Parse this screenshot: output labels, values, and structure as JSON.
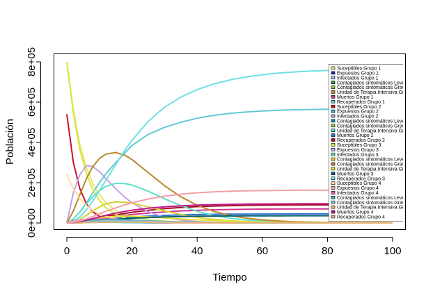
{
  "chart_data": {
    "type": "line",
    "xlabel": "Tiempo",
    "ylabel": "Población",
    "xlim": [
      0,
      100
    ],
    "ylim": [
      0,
      800000
    ],
    "x_ticks": [
      0,
      20,
      40,
      60,
      80,
      100
    ],
    "x_tick_labels": [
      "0",
      "20",
      "40",
      "60",
      "80",
      "100"
    ],
    "y_ticks": [
      0,
      200000,
      400000,
      600000,
      800000
    ],
    "y_tick_labels": [
      "0e+00",
      "2e+05",
      "4e+05",
      "6e+05",
      "8e+05"
    ],
    "legend_position": "top-right",
    "x": [
      0,
      2,
      4,
      6,
      8,
      10,
      12,
      15,
      18,
      20,
      25,
      30,
      35,
      40,
      45,
      50,
      55,
      60,
      65,
      70,
      75,
      80,
      85,
      90,
      95,
      100
    ],
    "series": [
      {
        "name": "Suceptibles Grupo 1",
        "color": "#e7e775",
        "values": [
          800000,
          560000,
          390000,
          275000,
          195000,
          140000,
          100000,
          62000,
          40000,
          30000,
          16000,
          9000,
          5000,
          3000,
          2000,
          1200,
          800,
          500,
          300,
          200,
          100,
          100,
          0,
          0,
          0,
          0
        ]
      },
      {
        "name": "Expuestos Grupo 1",
        "color": "#1f2bb8",
        "values": [
          0,
          12000,
          15000,
          14000,
          12000,
          10000,
          8000,
          6000,
          4500,
          3600,
          2000,
          1100,
          600,
          350,
          200,
          120,
          70,
          40,
          20,
          10,
          5,
          0,
          0,
          0,
          0,
          0
        ]
      },
      {
        "name": "Infectados Grupo 1",
        "color": "#8cc3f0",
        "values": [
          0,
          8000,
          14000,
          17000,
          17000,
          16000,
          14000,
          11000,
          8500,
          7000,
          4500,
          2800,
          1700,
          1000,
          600,
          380,
          230,
          140,
          90,
          50,
          30,
          20,
          10,
          0,
          0,
          0
        ]
      },
      {
        "name": "Contagiados sintomáticos Leves Grupo 1",
        "color": "#2e8b57",
        "values": [
          0,
          5000,
          11000,
          15000,
          17000,
          17500,
          16500,
          14000,
          11500,
          10000,
          7000,
          4800,
          3200,
          2100,
          1400,
          900,
          600,
          400,
          260,
          170,
          110,
          70,
          50,
          30,
          20,
          10
        ]
      },
      {
        "name": "Contagiados sintomáticos Graves Grupo 1",
        "color": "#8fbc3f",
        "values": [
          0,
          2000,
          5000,
          7500,
          9000,
          9800,
          10000,
          9500,
          8500,
          7700,
          5800,
          4200,
          3000,
          2100,
          1500,
          1000,
          700,
          480,
          330,
          230,
          160,
          110,
          80,
          50,
          30,
          20
        ]
      },
      {
        "name": "Unidad de Terapia Intensiva Grupo 1",
        "color": "#c8843a",
        "values": [
          0,
          500,
          1500,
          2500,
          3300,
          3900,
          4200,
          4300,
          4100,
          3800,
          3000,
          2300,
          1700,
          1200,
          850,
          600,
          420,
          290,
          200,
          140,
          100,
          70,
          50,
          30,
          20,
          10
        ]
      },
      {
        "name": "Muertos Grupo 1",
        "color": "#d0368f",
        "values": [
          0,
          1500,
          5000,
          10000,
          15000,
          20000,
          25000,
          32000,
          38000,
          42000,
          49000,
          55000,
          60000,
          63000,
          65500,
          67000,
          68000,
          68800,
          69300,
          69600,
          69800,
          69900,
          70000,
          70000,
          70000,
          70000
        ]
      },
      {
        "name": "Recuperados Grupo 1",
        "color": "#63c8d8",
        "values": [
          0,
          20000,
          55000,
          100000,
          150000,
          200000,
          245000,
          300000,
          350000,
          385000,
          440000,
          475000,
          500000,
          520000,
          534000,
          544000,
          551000,
          556000,
          559500,
          562000,
          563500,
          564500,
          565000,
          565500,
          566000,
          566000
        ]
      },
      {
        "name": "Suceptibles Grupo 2",
        "color": "#c8142a",
        "values": [
          540000,
          300000,
          170000,
          95000,
          55000,
          33000,
          20000,
          10000,
          5000,
          3000,
          1000,
          500,
          200,
          100,
          50,
          0,
          0,
          0,
          0,
          0,
          0,
          0,
          0,
          0,
          0,
          0
        ]
      },
      {
        "name": "Expuestos Grupo 2",
        "color": "#46b4c8",
        "values": [
          0,
          9000,
          12000,
          11000,
          9000,
          7000,
          5200,
          3400,
          2200,
          1600,
          800,
          400,
          200,
          100,
          50,
          20,
          10,
          0,
          0,
          0,
          0,
          0,
          0,
          0,
          0,
          0
        ]
      },
      {
        "name": "Infectados Grupo 2",
        "color": "#a8a0e0",
        "values": [
          0,
          6000,
          11000,
          13000,
          13000,
          12000,
          10500,
          8000,
          6000,
          4800,
          2900,
          1700,
          1000,
          600,
          350,
          200,
          120,
          70,
          40,
          20,
          10,
          0,
          0,
          0,
          0,
          0
        ]
      },
      {
        "name": "Contagiados sintomáticos Leves Grupo 2",
        "color": "#0f8fa0",
        "values": [
          0,
          4000,
          9000,
          12000,
          13000,
          13000,
          12000,
          10000,
          8000,
          6800,
          4500,
          3000,
          1900,
          1200,
          800,
          500,
          320,
          200,
          130,
          80,
          50,
          30,
          20,
          10,
          0,
          0
        ]
      },
      {
        "name": "Contagiados sintomáticos Graves Grupo 2",
        "color": "#9acd32",
        "values": [
          0,
          1500,
          4000,
          6000,
          7000,
          7500,
          7500,
          7000,
          6200,
          5500,
          4000,
          2800,
          1900,
          1300,
          900,
          600,
          400,
          270,
          180,
          120,
          80,
          50,
          30,
          20,
          10,
          0
        ]
      },
      {
        "name": "Unidad de Terapia Intensiva Grupo 2",
        "color": "#40d8d0",
        "values": [
          0,
          400,
          1200,
          2000,
          2600,
          3000,
          3200,
          3200,
          3000,
          2800,
          2200,
          1600,
          1200,
          850,
          600,
          420,
          290,
          200,
          140,
          100,
          70,
          50,
          30,
          20,
          10,
          10
        ]
      },
      {
        "name": "Muertos Grupo 2",
        "color": "#2a6fd0",
        "values": [
          0,
          1000,
          3500,
          7000,
          11000,
          15000,
          18500,
          23000,
          27000,
          29500,
          34000,
          37500,
          40000,
          41800,
          43000,
          43800,
          44300,
          44600,
          44800,
          44900,
          45000,
          45000,
          45000,
          45000,
          45000,
          45000
        ]
      },
      {
        "name": "Recuperados Grupo 2",
        "color": "#a50f25",
        "values": [
          0,
          3000,
          8000,
          14000,
          20000,
          26000,
          32000,
          40000,
          48000,
          53000,
          63000,
          71000,
          77000,
          81000,
          84000,
          86000,
          87500,
          88300,
          88900,
          89300,
          89600,
          89800,
          89900,
          90000,
          90000,
          90000
        ]
      },
      {
        "name": "Suceptibles Grupo 3",
        "color": "#d4e83a",
        "values": [
          800000,
          545000,
          365000,
          245000,
          165000,
          112000,
          76000,
          42000,
          23000,
          15000,
          5500,
          2100,
          800,
          300,
          120,
          50,
          20,
          0,
          0,
          0,
          0,
          0,
          0,
          0,
          0,
          0
        ]
      },
      {
        "name": "Expuestos Grupo 3",
        "color": "#c4a0e8",
        "values": [
          0,
          150000,
          240000,
          285000,
          280000,
          255000,
          220000,
          170000,
          125000,
          100000,
          55000,
          28000,
          14000,
          7000,
          3500,
          1700,
          800,
          400,
          200,
          100,
          50,
          20,
          10,
          0,
          0,
          0
        ]
      },
      {
        "name": "Infectados Grupo 3",
        "color": "#5fe0c8",
        "values": [
          0,
          20000,
          55000,
          95000,
          130000,
          160000,
          182000,
          197000,
          195000,
          188000,
          158000,
          120000,
          86000,
          58000,
          38000,
          24000,
          15000,
          9000,
          5500,
          3300,
          2000,
          1200,
          700,
          400,
          250,
          150
        ]
      },
      {
        "name": "Contagiados sintomáticos Leves Grupo 3",
        "color": "#d8d030",
        "values": [
          0,
          5000,
          18000,
          38000,
          60000,
          80000,
          95000,
          105000,
          103000,
          98000,
          80000,
          60000,
          42000,
          28000,
          18000,
          11000,
          7000,
          4200,
          2500,
          1500,
          900,
          500,
          300,
          200,
          100,
          50
        ]
      },
      {
        "name": "Contagiados sintomáticos Graves Grupo 3",
        "color": "#b8862b",
        "values": [
          0,
          60000,
          140000,
          220000,
          280000,
          320000,
          342000,
          350000,
          335000,
          315000,
          250000,
          185000,
          130000,
          88000,
          58000,
          38000,
          24000,
          15500,
          10000,
          6300,
          4000,
          2500,
          1600,
          1000,
          650,
          400
        ]
      },
      {
        "name": "Unidad de Terapia Intensiva Grupo 3",
        "color": "#e6e630",
        "values": [
          0,
          3000,
          8000,
          14000,
          20000,
          25000,
          29000,
          33000,
          34000,
          33500,
          30000,
          25000,
          20000,
          15500,
          12000,
          9000,
          6700,
          5000,
          3700,
          2700,
          2000,
          1500,
          1100,
          800,
          600,
          450
        ]
      },
      {
        "name": "Muertos Grupo 3",
        "color": "#0a5f6a",
        "values": [
          0,
          500,
          2000,
          4500,
          7500,
          10500,
          13500,
          17500,
          21000,
          23000,
          27000,
          30000,
          32000,
          33300,
          34200,
          34800,
          35200,
          35400,
          35600,
          35700,
          35800,
          35800,
          35900,
          35900,
          35900,
          35900
        ]
      },
      {
        "name": "Recuperados Grupo 3",
        "color": "#6fe0e0",
        "values": [
          0,
          8000,
          30000,
          65000,
          110000,
          160000,
          212000,
          290000,
          365000,
          410000,
          505000,
          575000,
          625000,
          662000,
          690000,
          710000,
          725000,
          736000,
          744000,
          750000,
          754000,
          757000,
          759000,
          760500,
          761500,
          762000
        ]
      },
      {
        "name": "Suceptibles Grupo 4",
        "color": "#ffdf9e",
        "values": [
          240000,
          170000,
          120000,
          86000,
          62000,
          45000,
          33000,
          20000,
          12500,
          9000,
          4000,
          1800,
          800,
          350,
          150,
          70,
          30,
          10,
          0,
          0,
          0,
          0,
          0,
          0,
          0,
          0
        ]
      },
      {
        "name": "Expuestos Grupo 4",
        "color": "#f0a8b8",
        "values": [
          0,
          10000,
          15000,
          16500,
          16000,
          14500,
          12500,
          9500,
          7000,
          5600,
          3000,
          1600,
          800,
          400,
          200,
          100,
          50,
          20,
          10,
          0,
          0,
          0,
          0,
          0,
          0,
          0
        ]
      },
      {
        "name": "Infectados Grupo 4",
        "color": "#e45cb0",
        "values": [
          0,
          4000,
          10000,
          15000,
          18000,
          19500,
          19500,
          18000,
          15500,
          13800,
          9800,
          6700,
          4400,
          2900,
          1900,
          1200,
          780,
          500,
          320,
          200,
          130,
          80,
          50,
          30,
          20,
          10
        ]
      },
      {
        "name": "Contagiados sintomáticos Leves Grupo 4",
        "color": "#3cb4a0",
        "values": [
          0,
          2000,
          6000,
          10000,
          13500,
          15500,
          16500,
          16500,
          15000,
          13800,
          10500,
          7700,
          5400,
          3700,
          2500,
          1700,
          1100,
          740,
          490,
          320,
          210,
          140,
          90,
          60,
          40,
          25
        ]
      },
      {
        "name": "Contagiados sintomáticos Graves Grupo 4",
        "color": "#8cbfe0",
        "values": [
          0,
          1000,
          3000,
          5500,
          7500,
          9000,
          10000,
          10500,
          10000,
          9500,
          7800,
          6000,
          4500,
          3300,
          2400,
          1700,
          1200,
          850,
          600,
          420,
          300,
          210,
          150,
          100,
          70,
          50
        ]
      },
      {
        "name": "Unidad de Terapia Intensiva Grupo 4",
        "color": "#e8b070",
        "values": [
          0,
          300,
          1000,
          1800,
          2600,
          3200,
          3700,
          4100,
          4200,
          4100,
          3700,
          3100,
          2500,
          2000,
          1550,
          1200,
          920,
          700,
          530,
          400,
          300,
          230,
          170,
          130,
          100,
          75
        ]
      },
      {
        "name": "Muertos Grupo 4",
        "color": "#c0178a",
        "values": [
          0,
          2000,
          7000,
          14000,
          22000,
          30000,
          38000,
          49000,
          58000,
          63500,
          73000,
          80000,
          85000,
          88500,
          91000,
          92600,
          93700,
          94400,
          94900,
          95200,
          95400,
          95600,
          95700,
          95750,
          95800,
          95800
        ]
      },
      {
        "name": "Recuperados Grupo 4",
        "color": "#f2a0a8",
        "values": [
          0,
          3000,
          10000,
          20000,
          32000,
          45000,
          58000,
          75000,
          91000,
          100000,
          119000,
          133000,
          143000,
          150000,
          154500,
          157500,
          159500,
          160800,
          161700,
          162300,
          162700,
          163000,
          163200,
          163300,
          163400,
          163400
        ]
      }
    ]
  }
}
